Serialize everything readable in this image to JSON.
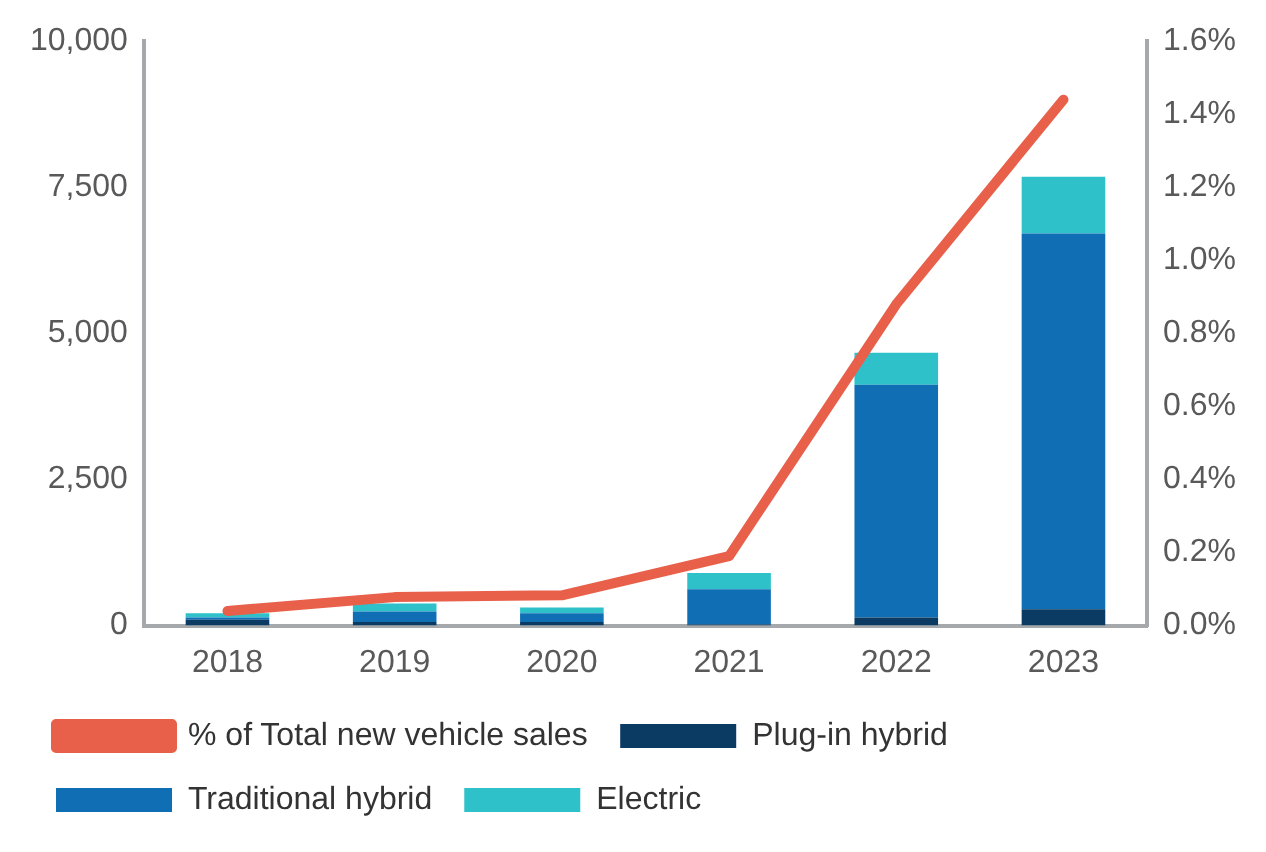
{
  "chart_data": {
    "type": "bar",
    "stacked": true,
    "categories": [
      "2018",
      "2019",
      "2020",
      "2021",
      "2022",
      "2023"
    ],
    "series": [
      {
        "name": "Plug-in hybrid",
        "color": "#0b3a63",
        "values": [
          100,
          60,
          60,
          20,
          140,
          280
        ]
      },
      {
        "name": "Traditional hybrid",
        "color": "#106eb5",
        "values": [
          40,
          180,
          150,
          600,
          3980,
          6430
        ]
      },
      {
        "name": "Electric",
        "color": "#2ec1c9",
        "values": [
          70,
          140,
          100,
          280,
          550,
          970
        ]
      },
      {
        "name": "% of Total new vehicle sales",
        "type": "line",
        "axis": "y2",
        "color": "#e8604a",
        "values": [
          0.04,
          0.078,
          0.083,
          0.19,
          0.88,
          1.44
        ]
      }
    ],
    "ylim": [
      0,
      10000
    ],
    "yticks": [
      {
        "value": 0,
        "label": "0"
      },
      {
        "value": 2500,
        "label": "2,500"
      },
      {
        "value": 5000,
        "label": "5,000"
      },
      {
        "value": 7500,
        "label": "7,500"
      },
      {
        "value": 10000,
        "label": "10,000"
      }
    ],
    "y2lim": [
      0,
      1.6
    ],
    "y2ticks": [
      {
        "value": 0,
        "label": "0.0%"
      },
      {
        "value": 0.2,
        "label": "0.2%"
      },
      {
        "value": 0.4,
        "label": "0.4%"
      },
      {
        "value": 0.6,
        "label": "0.6%"
      },
      {
        "value": 0.8,
        "label": "0.8%"
      },
      {
        "value": 1.0,
        "label": "1.0%"
      },
      {
        "value": 1.2,
        "label": "1.2%"
      },
      {
        "value": 1.4,
        "label": "1.4%"
      },
      {
        "value": 1.6,
        "label": "1.6%"
      }
    ],
    "grid": false,
    "legend": "bottom",
    "marker": "none"
  }
}
